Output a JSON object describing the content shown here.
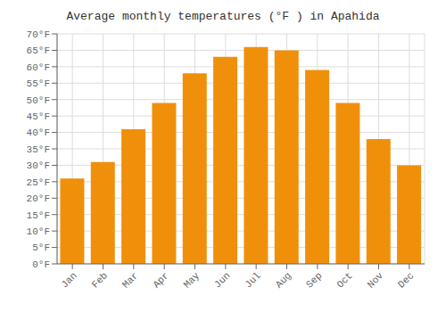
{
  "chart_data": {
    "type": "bar",
    "title": "Average monthly temperatures (°F ) in Apahida",
    "categories": [
      "Jan",
      "Feb",
      "Mar",
      "Apr",
      "May",
      "Jun",
      "Jul",
      "Aug",
      "Sep",
      "Oct",
      "Nov",
      "Dec"
    ],
    "values": [
      26,
      31,
      41,
      49,
      58,
      63,
      66,
      65,
      59,
      49,
      38,
      30
    ],
    "color": "#F0900A",
    "ylim": [
      0,
      70
    ],
    "yticks": [
      {
        "value": 0,
        "label": "0°F"
      },
      {
        "value": 5,
        "label": "5°F"
      },
      {
        "value": 10,
        "label": "10°F"
      },
      {
        "value": 15,
        "label": "15°F"
      },
      {
        "value": 20,
        "label": "20°F"
      },
      {
        "value": 25,
        "label": "25°F"
      },
      {
        "value": 30,
        "label": "30°F"
      },
      {
        "value": 35,
        "label": "35°F"
      },
      {
        "value": 40,
        "label": "40°F"
      },
      {
        "value": 45,
        "label": "45°F"
      },
      {
        "value": 50,
        "label": "50°F"
      },
      {
        "value": 55,
        "label": "55°F"
      },
      {
        "value": 60,
        "label": "60°F"
      },
      {
        "value": 65,
        "label": "65°F"
      },
      {
        "value": 70,
        "label": "70°F"
      }
    ],
    "grid": true
  }
}
